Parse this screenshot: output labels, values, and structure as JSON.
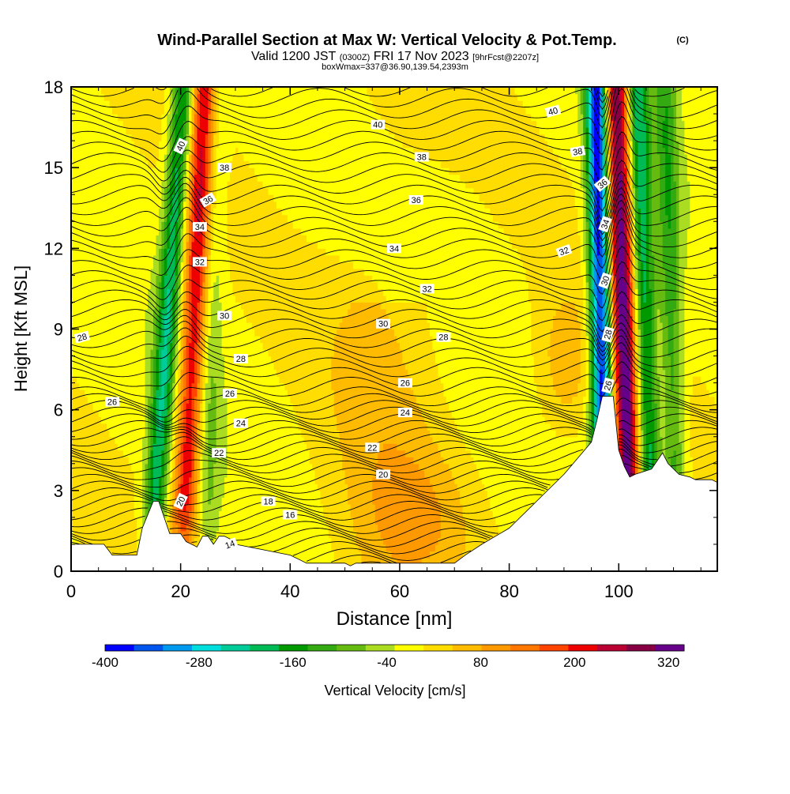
{
  "chart_data": {
    "type": "heatmap",
    "title": "Wind-Parallel Section at Max W: Vertical Velocity & Pot.Temp.",
    "title_mark": "(C)",
    "subtitle_parts": [
      "Valid 1200 JST",
      "(0300Z)",
      "FRI 17 Nov 2023",
      "[9hrFcst@2207z]"
    ],
    "subtitle2": "boxWmax=337@36.90,139.54,2393m",
    "xlabel": "Distance [nm]",
    "ylabel": "Height [Kft MSL]",
    "xlim": [
      0,
      118
    ],
    "ylim": [
      0,
      18
    ],
    "x_ticks": [
      0,
      20,
      40,
      60,
      80,
      100
    ],
    "y_ticks": [
      0,
      3,
      6,
      9,
      12,
      15,
      18
    ],
    "grid": false,
    "colorbar": {
      "label": "Vertical Velocity [cm/s]",
      "tick_labels": [
        "-400",
        "-280",
        "-160",
        "-40",
        "80",
        "200",
        "320"
      ],
      "tick_values": [
        -400,
        -280,
        -160,
        -40,
        80,
        200,
        320
      ],
      "range": [
        -400,
        340
      ],
      "colors": [
        "#0000ff",
        "#0055ee",
        "#0099ee",
        "#00dddd",
        "#00cc99",
        "#00bb55",
        "#009900",
        "#33aa11",
        "#66bb11",
        "#aadd22",
        "#ffff00",
        "#ffdd00",
        "#ffbb00",
        "#ff9900",
        "#ff7700",
        "#ff4400",
        "#ee0000",
        "#bb0033",
        "#880044",
        "#660088"
      ]
    },
    "w_features": [
      {
        "type": "down",
        "x0": 14.8,
        "x1": 20.5,
        "strength": -200
      },
      {
        "type": "up",
        "x0": 20.5,
        "x1": 24.5,
        "strength": 230
      },
      {
        "type": "down",
        "x0": 24.8,
        "x1": 26.5,
        "strength": -60
      },
      {
        "type": "down",
        "x0": 97.5,
        "x1": 96.0,
        "strength": -400
      },
      {
        "type": "up",
        "x0": 102.0,
        "x1": 99.5,
        "strength": 337
      },
      {
        "type": "down",
        "x0": 106.0,
        "x1": 103.5,
        "strength": -200
      },
      {
        "type": "down",
        "x0": 110.5,
        "x1": 108.5,
        "strength": -120
      }
    ],
    "terrain": [
      [
        0,
        1.0
      ],
      [
        6,
        1.0
      ],
      [
        7.5,
        0.6
      ],
      [
        12,
        0.6
      ],
      [
        13,
        1.6
      ],
      [
        14,
        2.1
      ],
      [
        15,
        2.6
      ],
      [
        16,
        2.6
      ],
      [
        17,
        2.0
      ],
      [
        18,
        1.4
      ],
      [
        20,
        1.4
      ],
      [
        21,
        1.1
      ],
      [
        22,
        1.0
      ],
      [
        23,
        0.9
      ],
      [
        24,
        1.3
      ],
      [
        25,
        1.3
      ],
      [
        26,
        1.0
      ],
      [
        27,
        1.3
      ],
      [
        28,
        1.3
      ],
      [
        29,
        1.2
      ],
      [
        30,
        1.0
      ],
      [
        40,
        0.6
      ],
      [
        43,
        0.3
      ],
      [
        50,
        0.3
      ],
      [
        51,
        0.2
      ],
      [
        52,
        0.3
      ],
      [
        60,
        0.3
      ],
      [
        66,
        0.3
      ],
      [
        70,
        0.3
      ],
      [
        72,
        0.6
      ],
      [
        75,
        1.0
      ],
      [
        80,
        1.6
      ],
      [
        85,
        2.6
      ],
      [
        90,
        3.6
      ],
      [
        95,
        4.8
      ],
      [
        96,
        5.6
      ],
      [
        97,
        6.5
      ],
      [
        99,
        6.5
      ],
      [
        100,
        4.5
      ],
      [
        101,
        3.9
      ],
      [
        102,
        3.5
      ],
      [
        103,
        3.6
      ],
      [
        106,
        3.8
      ],
      [
        108,
        4.4
      ],
      [
        109,
        4.0
      ],
      [
        111,
        3.6
      ],
      [
        113,
        3.5
      ],
      [
        114,
        3.4
      ],
      [
        117,
        3.4
      ],
      [
        118,
        3.3
      ]
    ],
    "isentrope_levels": [
      14,
      16,
      18,
      20,
      22,
      24,
      26,
      28,
      30,
      32,
      34,
      36,
      38,
      40
    ],
    "theta_labels": [
      {
        "v": "40",
        "x": 20,
        "y": 15.8,
        "r": -65
      },
      {
        "v": "38",
        "x": 28,
        "y": 15.0,
        "r": 0
      },
      {
        "v": "36",
        "x": 25,
        "y": 13.8,
        "r": -30
      },
      {
        "v": "34",
        "x": 23.5,
        "y": 12.8,
        "r": 0
      },
      {
        "v": "32",
        "x": 23.5,
        "y": 11.5,
        "r": 0
      },
      {
        "v": "30",
        "x": 28,
        "y": 9.5,
        "r": 0
      },
      {
        "v": "28",
        "x": 31,
        "y": 7.9,
        "r": 0
      },
      {
        "v": "26",
        "x": 29,
        "y": 6.6,
        "r": 0
      },
      {
        "v": "24",
        "x": 31,
        "y": 5.5,
        "r": 0
      },
      {
        "v": "22",
        "x": 27,
        "y": 4.4,
        "r": 0
      },
      {
        "v": "20",
        "x": 20,
        "y": 2.6,
        "r": -65
      },
      {
        "v": "18",
        "x": 36,
        "y": 2.6,
        "r": 0
      },
      {
        "v": "16",
        "x": 40,
        "y": 2.1,
        "r": 0
      },
      {
        "v": "14",
        "x": 29,
        "y": 1.0,
        "r": -20
      },
      {
        "v": "40",
        "x": 56,
        "y": 16.6,
        "r": 0
      },
      {
        "v": "38",
        "x": 64,
        "y": 15.4,
        "r": 0
      },
      {
        "v": "36",
        "x": 63,
        "y": 13.8,
        "r": 0
      },
      {
        "v": "34",
        "x": 59,
        "y": 12.0,
        "r": 0
      },
      {
        "v": "32",
        "x": 65,
        "y": 10.5,
        "r": 0
      },
      {
        "v": "30",
        "x": 57,
        "y": 9.2,
        "r": 0
      },
      {
        "v": "28",
        "x": 68,
        "y": 8.7,
        "r": 0
      },
      {
        "v": "26",
        "x": 61,
        "y": 7.0,
        "r": 0
      },
      {
        "v": "24",
        "x": 61,
        "y": 5.9,
        "r": 0
      },
      {
        "v": "22",
        "x": 55,
        "y": 4.6,
        "r": 0
      },
      {
        "v": "20",
        "x": 57,
        "y": 3.6,
        "r": 0
      },
      {
        "v": "28",
        "x": 2,
        "y": 8.7,
        "r": -15
      },
      {
        "v": "26",
        "x": 7.5,
        "y": 6.3,
        "r": 0
      },
      {
        "v": "40",
        "x": 88,
        "y": 17.1,
        "r": -15
      },
      {
        "v": "38",
        "x": 92.5,
        "y": 15.6,
        "r": -10
      },
      {
        "v": "36",
        "x": 97,
        "y": 14.4,
        "r": -40
      },
      {
        "v": "34",
        "x": 97.5,
        "y": 12.9,
        "r": -70
      },
      {
        "v": "32",
        "x": 90,
        "y": 11.9,
        "r": -20
      },
      {
        "v": "30",
        "x": 97.5,
        "y": 10.8,
        "r": -70
      },
      {
        "v": "28",
        "x": 98,
        "y": 8.8,
        "r": -75
      },
      {
        "v": "26",
        "x": 98,
        "y": 6.9,
        "r": -75
      }
    ]
  }
}
